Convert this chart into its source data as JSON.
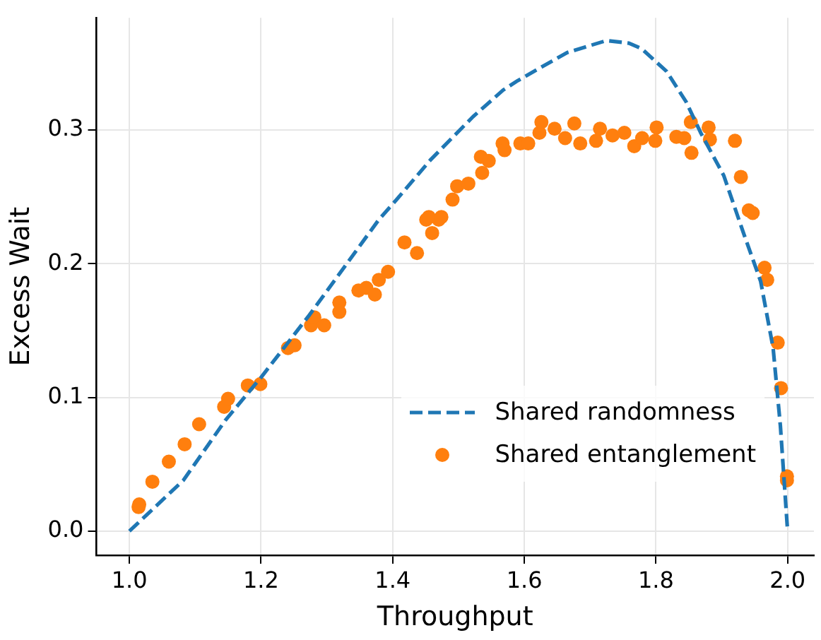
{
  "chart_data": {
    "type": "scatter",
    "xlabel": "Throughput",
    "ylabel": "Excess Wait",
    "xlim": [
      0.95,
      2.04
    ],
    "ylim": [
      -0.018,
      0.384
    ],
    "xticks": [
      {
        "value": 1.0,
        "label": "1.0"
      },
      {
        "value": 1.2,
        "label": "1.2"
      },
      {
        "value": 1.4,
        "label": "1.4"
      },
      {
        "value": 1.6,
        "label": "1.6"
      },
      {
        "value": 1.8,
        "label": "1.8"
      },
      {
        "value": 2.0,
        "label": "2.0"
      }
    ],
    "yticks": [
      {
        "value": 0,
        "label": "0.0"
      },
      {
        "value": 0.1,
        "label": "0.1"
      },
      {
        "value": 0.2,
        "label": "0.2"
      },
      {
        "value": 0.3,
        "label": "0.3"
      }
    ],
    "grid": true,
    "legend": "bottom right",
    "series": [
      {
        "name": "Shared randomness",
        "type": "line",
        "color": "#1f77b4",
        "line_style": "dashed",
        "marker": "none",
        "x": [
          1.0,
          1.082,
          1.146,
          1.2,
          1.274,
          1.379,
          1.406,
          1.458,
          1.522,
          1.568,
          1.59,
          1.665,
          1.725,
          1.759,
          1.778,
          1.816,
          1.846,
          1.868,
          1.903,
          1.933,
          1.959,
          1.978,
          1.989,
          2.0
        ],
        "values": [
          0,
          0.038,
          0.083,
          0.115,
          0.162,
          0.233,
          0.248,
          0.278,
          0.31,
          0.33,
          0.337,
          0.358,
          0.367,
          0.365,
          0.361,
          0.344,
          0.321,
          0.298,
          0.266,
          0.223,
          0.187,
          0.137,
          0.079,
          0
        ]
      },
      {
        "name": "Shared entanglement",
        "type": "scatter",
        "color": "#ff7f0e",
        "marker": "circle",
        "x": [
          1.014,
          1.015,
          1.035,
          1.06,
          1.084,
          1.106,
          1.144,
          1.15,
          1.18,
          1.199,
          1.241,
          1.251,
          1.276,
          1.281,
          1.296,
          1.319,
          1.319,
          1.348,
          1.36,
          1.373,
          1.379,
          1.393,
          1.418,
          1.437,
          1.46,
          1.451,
          1.47,
          1.455,
          1.474,
          1.491,
          1.498,
          1.515,
          1.536,
          1.534,
          1.546,
          1.567,
          1.57,
          1.594,
          1.606,
          1.623,
          1.626,
          1.646,
          1.662,
          1.676,
          1.685,
          1.709,
          1.715,
          1.734,
          1.752,
          1.767,
          1.779,
          1.799,
          1.801,
          1.831,
          1.843,
          1.853,
          1.854,
          1.88,
          1.882,
          1.92,
          1.929,
          1.941,
          1.947,
          1.965,
          1.969,
          1.985,
          1.99,
          1.999,
          1.999
        ],
        "values": [
          0.018,
          0.02,
          0.037,
          0.052,
          0.065,
          0.08,
          0.093,
          0.099,
          0.109,
          0.11,
          0.137,
          0.139,
          0.154,
          0.16,
          0.154,
          0.171,
          0.164,
          0.18,
          0.182,
          0.177,
          0.188,
          0.194,
          0.216,
          0.208,
          0.223,
          0.233,
          0.233,
          0.235,
          0.235,
          0.248,
          0.258,
          0.26,
          0.268,
          0.28,
          0.277,
          0.29,
          0.285,
          0.29,
          0.29,
          0.298,
          0.306,
          0.301,
          0.294,
          0.305,
          0.29,
          0.292,
          0.301,
          0.296,
          0.298,
          0.288,
          0.294,
          0.292,
          0.302,
          0.295,
          0.294,
          0.306,
          0.283,
          0.302,
          0.293,
          0.292,
          0.265,
          0.24,
          0.238,
          0.197,
          0.188,
          0.141,
          0.107,
          0.041,
          0.038
        ]
      }
    ]
  }
}
